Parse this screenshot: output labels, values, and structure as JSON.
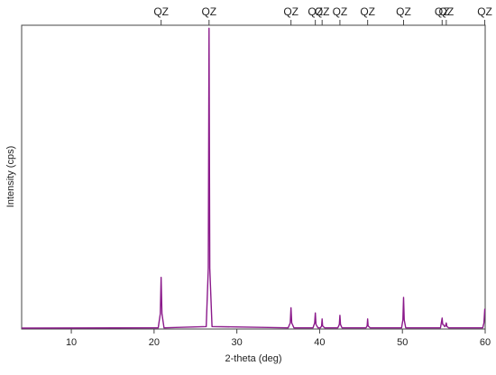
{
  "chart_data": {
    "type": "line",
    "xlabel": "2-theta (deg)",
    "ylabel": "Intensity (cps)",
    "xlim": [
      4,
      60
    ],
    "xticks": [
      10,
      20,
      30,
      40,
      50,
      60
    ],
    "ylim": [
      0,
      100
    ],
    "annotations": [
      {
        "label": "QZ",
        "x": 20.85
      },
      {
        "label": "QZ",
        "x": 26.64
      },
      {
        "label": "QZ",
        "x": 36.54
      },
      {
        "label": "QZ",
        "x": 39.48
      },
      {
        "label": "QZ",
        "x": 40.3
      },
      {
        "label": "QZ",
        "x": 42.45
      },
      {
        "label": "QZ",
        "x": 45.8
      },
      {
        "label": "QZ",
        "x": 50.14
      },
      {
        "label": "QZ",
        "x": 54.8
      },
      {
        "label": "QZ",
        "x": 55.3
      },
      {
        "label": "QZ",
        "x": 59.95
      }
    ],
    "series": [
      {
        "color": "#8b1a8b",
        "x": [
          4,
          20.5,
          20.75,
          20.85,
          20.95,
          21.2,
          26.3,
          26.55,
          26.64,
          26.73,
          27.0,
          36.2,
          36.45,
          36.54,
          36.63,
          36.9,
          39.2,
          39.4,
          39.48,
          39.56,
          39.8,
          40.1,
          40.24,
          40.3,
          40.36,
          40.6,
          42.2,
          42.38,
          42.45,
          42.52,
          42.7,
          45.6,
          45.74,
          45.8,
          45.86,
          46.1,
          49.9,
          50.06,
          50.14,
          50.22,
          50.4,
          54.6,
          54.8,
          54.87,
          54.94,
          55.1,
          55.2,
          55.3,
          55.38,
          55.6,
          59.7,
          59.85,
          59.95,
          60
        ],
        "values": [
          0.3,
          0.4,
          5,
          17,
          5,
          0.4,
          0.8,
          20,
          99,
          20,
          0.8,
          0.4,
          2,
          7,
          2,
          0.4,
          0.4,
          2,
          5.3,
          1.5,
          0.4,
          0.4,
          1,
          3.3,
          1,
          0.4,
          0.4,
          1.5,
          4.5,
          1.5,
          0.4,
          0.4,
          1,
          3.3,
          1,
          0.4,
          0.4,
          3,
          10.4,
          3,
          0.4,
          0.4,
          3.6,
          1.5,
          1.5,
          0.8,
          1,
          2,
          0.8,
          0.4,
          0.4,
          2,
          6.5,
          6.5
        ]
      }
    ]
  }
}
